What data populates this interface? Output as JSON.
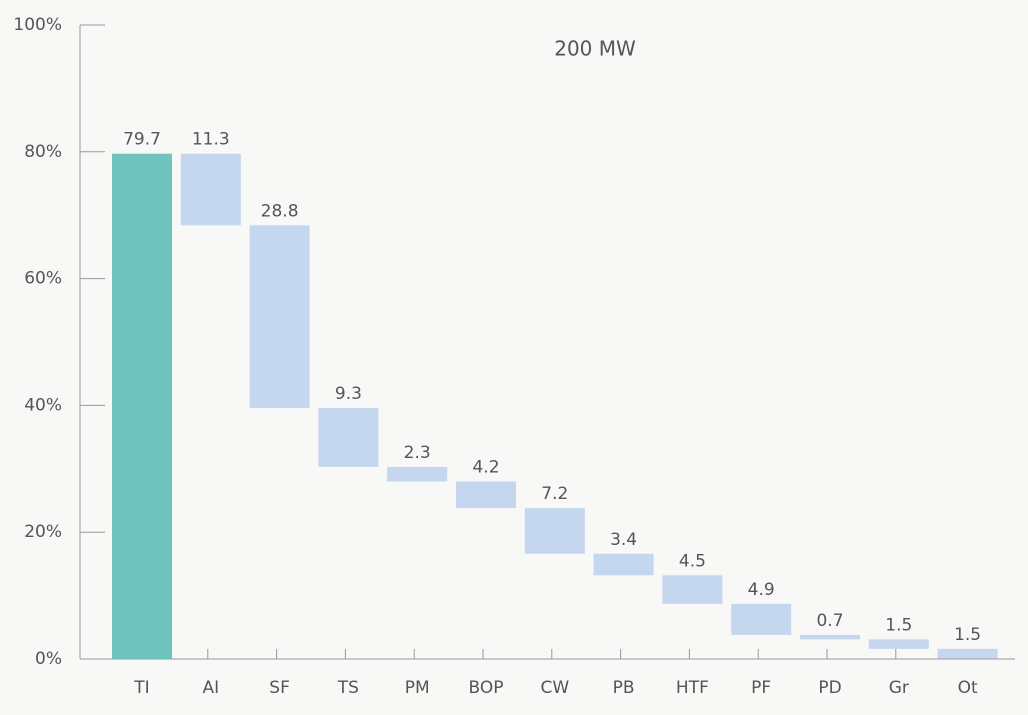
{
  "chart_data": {
    "type": "waterfall",
    "title": "200 MW",
    "categories": [
      "TI",
      "AI",
      "SF",
      "TS",
      "PM",
      "BOP",
      "CW",
      "PB",
      "HTF",
      "PF",
      "PD",
      "Gr",
      "Ot"
    ],
    "values": [
      79.7,
      11.3,
      28.8,
      9.3,
      2.3,
      4.2,
      7.2,
      3.4,
      4.5,
      4.9,
      0.7,
      1.5,
      1.5
    ],
    "total_color": "#6fc5be",
    "color": "#c5d6ef",
    "ylim": [
      0,
      100
    ],
    "yticks": [
      {
        "value": 0,
        "label": "0%"
      },
      {
        "value": 20,
        "label": "20%"
      },
      {
        "value": 40,
        "label": "40%"
      },
      {
        "value": 60,
        "label": "60%"
      },
      {
        "value": 80,
        "label": "80%"
      },
      {
        "value": 100,
        "label": "100%"
      }
    ]
  }
}
